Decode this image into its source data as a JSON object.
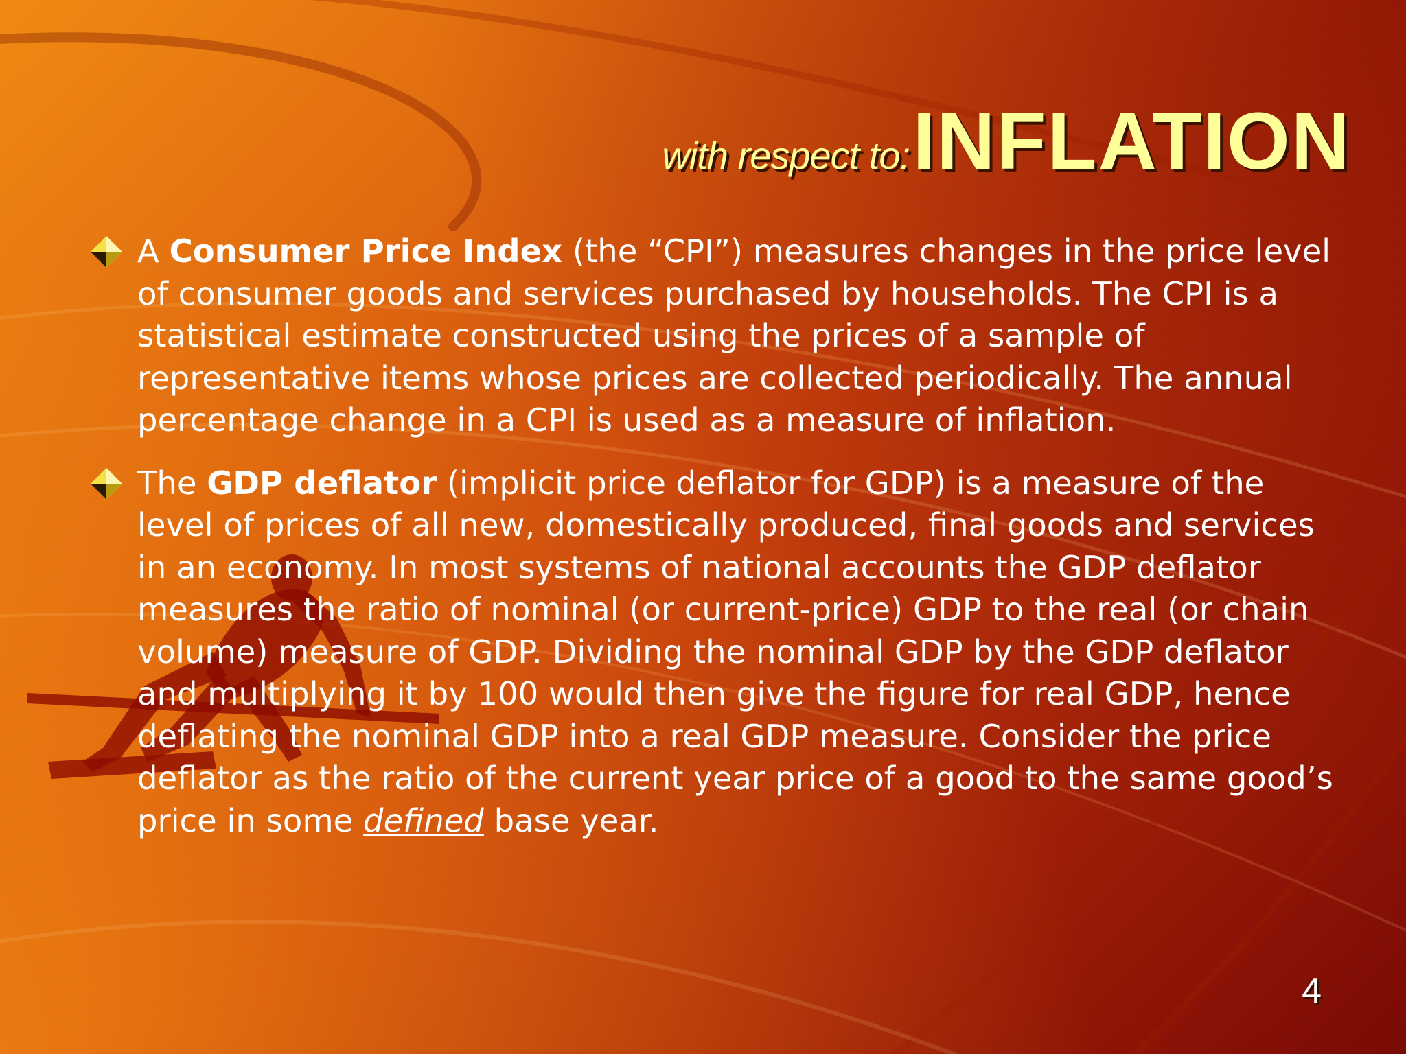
{
  "slide": {
    "title_prefix": "with respect to:",
    "title_main": "INFLATION",
    "page_number": "4"
  },
  "bullets": [
    {
      "lead": "A ",
      "term": "Consumer Price Index",
      "body": " (the “CPI”) measures changes in the price level of consumer goods and services purchased by households.  The CPI is a statistical estimate constructed using the prices of a sample of representative items whose prices are collected periodically.  The annual percentage change in a CPI is used as a measure of inflation."
    },
    {
      "lead": "The ",
      "term": "GDP deflator",
      "body": " (implicit price deflator for GDP) is a measure of the level of prices of all new, domestically produced, final goods and services in an economy.  In most systems of national accounts the GDP deflator measures the ratio of nominal (or current-price) GDP to the real (or chain volume) measure of GDP.  Dividing the nominal GDP by the GDP deflator and multiplying it by 100 would then give the figure for real GDP, hence deflating the nominal GDP into a real GDP measure.  Consider the price deflator as the ratio of the current year price of a good to the same good’s price in some ",
      "emphasis": "defined",
      "tail": " base year."
    }
  ],
  "colors": {
    "title": "#ffff99",
    "body_text": "#ffffff",
    "background_light": "#f08a12",
    "background_dark": "#7a0a04"
  },
  "icons": {
    "bullet": "diamond-bullet-icon",
    "background_figure": "sprinter-silhouette"
  }
}
